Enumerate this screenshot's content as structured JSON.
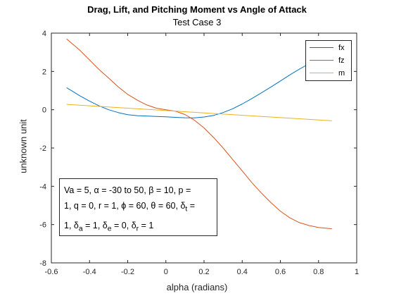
{
  "chart_data": {
    "type": "line",
    "title": "Drag, Lift, and Pitching Moment vs Angle of Attack",
    "subtitle": "Test Case 3",
    "xlabel": "alpha (radians)",
    "ylabel": "unknown unit",
    "xlim": [
      -0.6,
      1.0
    ],
    "ylim": [
      -8,
      4
    ],
    "xticks": [
      "-0.6",
      "-0.4",
      "-0.2",
      "0",
      "0.2",
      "0.4",
      "0.6",
      "0.8",
      "1"
    ],
    "yticks": [
      "-8",
      "-6",
      "-4",
      "-2",
      "0",
      "2",
      "4"
    ],
    "grid": false,
    "legend_position": "top-right",
    "series": [
      {
        "name": "fx",
        "color": "#0072BD",
        "x": [
          -0.52,
          -0.45,
          -0.4,
          -0.35,
          -0.3,
          -0.25,
          -0.2,
          -0.15,
          -0.1,
          -0.05,
          0.0,
          0.05,
          0.1,
          0.15,
          0.2,
          0.25,
          0.3,
          0.35,
          0.4,
          0.45,
          0.5,
          0.55,
          0.6,
          0.65,
          0.7,
          0.75,
          0.8,
          0.87
        ],
        "y": [
          1.15,
          0.72,
          0.45,
          0.2,
          0.0,
          -0.15,
          -0.26,
          -0.31,
          -0.33,
          -0.35,
          -0.37,
          -0.4,
          -0.42,
          -0.43,
          -0.38,
          -0.3,
          -0.15,
          0.05,
          0.3,
          0.58,
          0.88,
          1.18,
          1.5,
          1.82,
          2.12,
          2.4,
          2.66,
          2.9
        ]
      },
      {
        "name": "fz",
        "color": "#D95319",
        "x": [
          -0.52,
          -0.45,
          -0.4,
          -0.35,
          -0.3,
          -0.25,
          -0.2,
          -0.15,
          -0.1,
          -0.05,
          0.0,
          0.05,
          0.1,
          0.15,
          0.2,
          0.25,
          0.3,
          0.35,
          0.4,
          0.45,
          0.5,
          0.55,
          0.6,
          0.65,
          0.7,
          0.75,
          0.8,
          0.87
        ],
        "y": [
          3.7,
          3.1,
          2.6,
          2.1,
          1.65,
          1.2,
          0.8,
          0.5,
          0.25,
          0.08,
          0.0,
          -0.08,
          -0.25,
          -0.55,
          -0.95,
          -1.45,
          -2.0,
          -2.6,
          -3.2,
          -3.8,
          -4.35,
          -4.85,
          -5.3,
          -5.65,
          -5.9,
          -6.05,
          -6.15,
          -6.22
        ]
      },
      {
        "name": "m",
        "color": "#EDB120",
        "x": [
          -0.52,
          0.87
        ],
        "y": [
          0.28,
          -0.58
        ]
      }
    ],
    "annotation": {
      "lines": [
        "Va = 5, α = -30 to 50, β = 10, p =",
        "1, q = 0, r = 1, ϕ = 60, θ = 60, δ_t =",
        "1, δ_a = 1, δ_e = 0, δ_r = 1"
      ]
    }
  }
}
